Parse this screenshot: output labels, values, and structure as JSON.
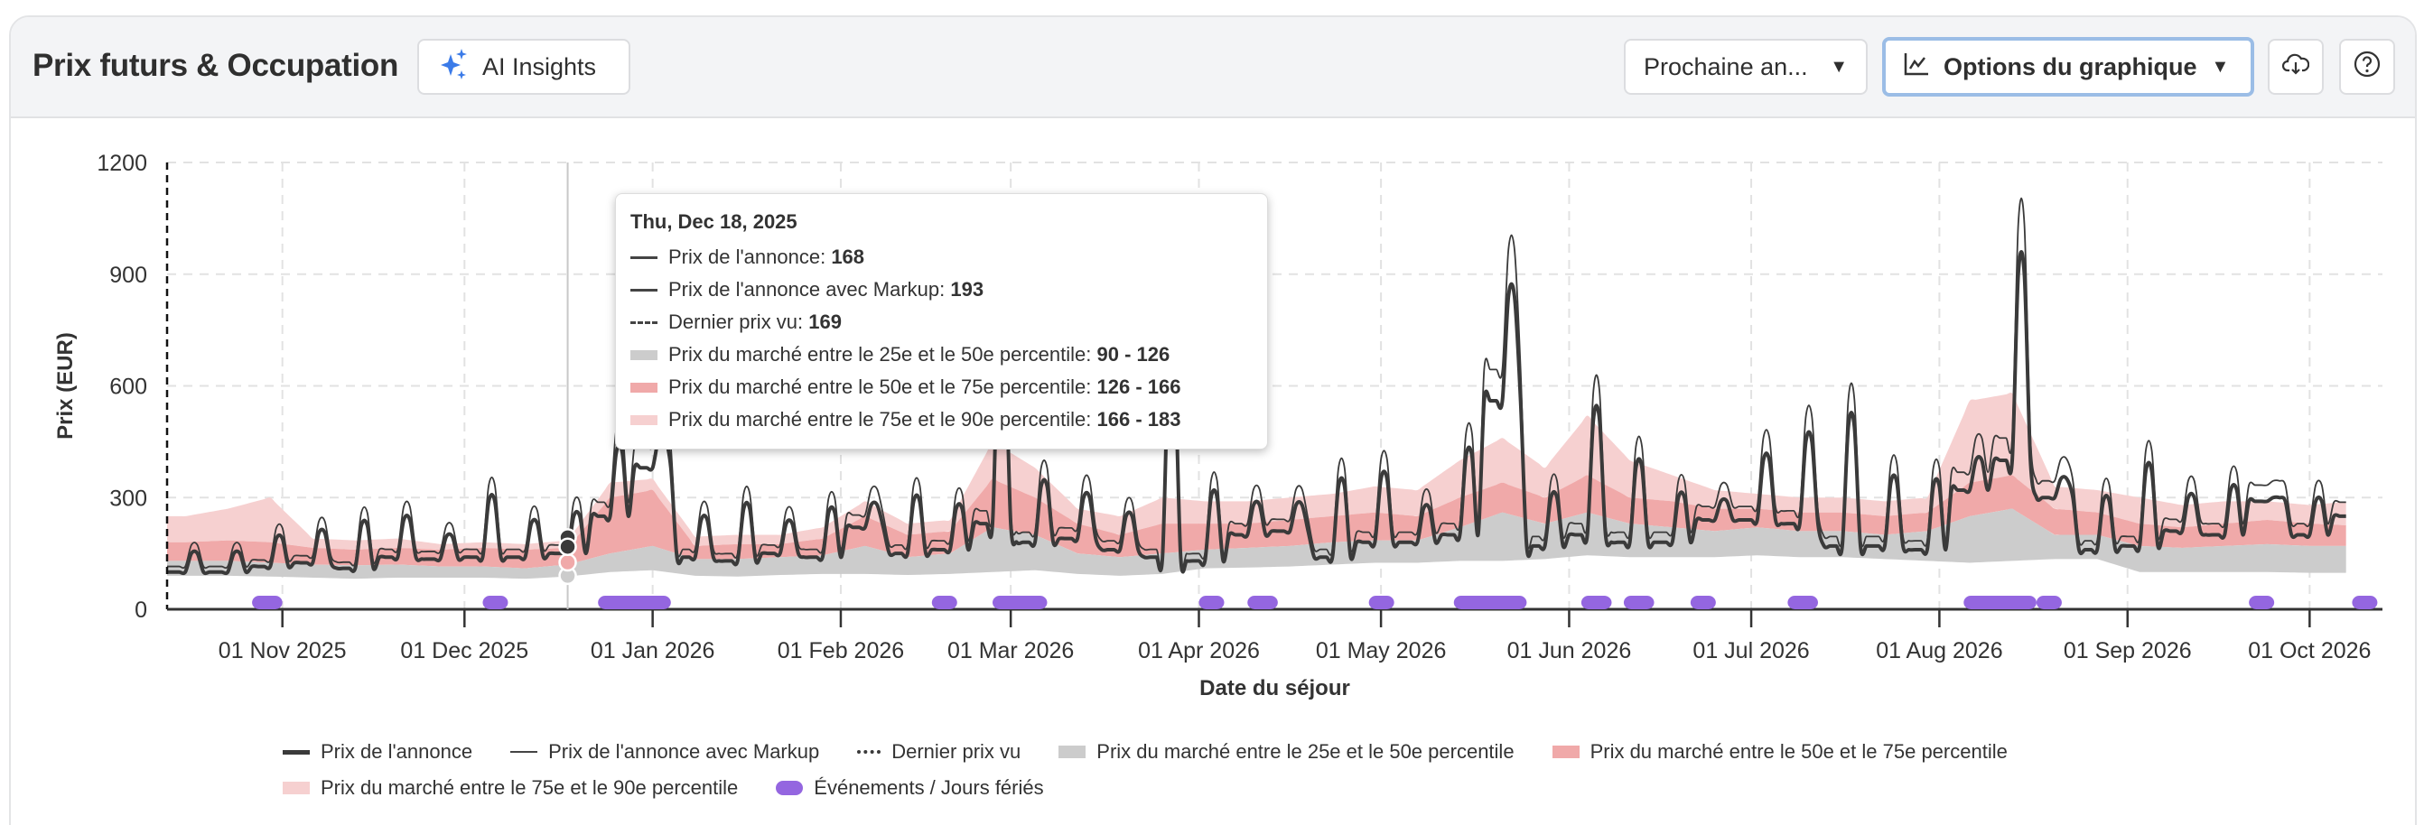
{
  "header": {
    "title": "Prix futurs & Occupation",
    "ai_insights_label": "AI Insights",
    "period_select_value": "Prochaine an...",
    "chart_options_label": "Options du graphique"
  },
  "icons": {
    "ai": "sparkles-icon",
    "options": "line-chart-icon",
    "download": "cloud-download-icon",
    "help": "help-circle-icon"
  },
  "colors": {
    "accent": "#3b7be8",
    "line": "#3a3a3a",
    "band_25_50": "#cccccc",
    "band_50_75": "#f0a9a9",
    "band_75_90": "#f6d0d0",
    "events": "#9466e0",
    "focus_ring": "#9bbde6"
  },
  "tooltip": {
    "date": "Thu, Dec 18, 2025",
    "rows": [
      {
        "label": "Prix de l'annonce: ",
        "value": "168"
      },
      {
        "label": "Prix de l'annonce avec Markup: ",
        "value": "193"
      },
      {
        "label": "Dernier prix vu: ",
        "value": "169"
      },
      {
        "label": "Prix du marché entre le 25e et le 50e percentile: ",
        "value": "90 - 126"
      },
      {
        "label": "Prix du marché entre le 50e et le 75e percentile: ",
        "value": "126 - 166"
      },
      {
        "label": "Prix du marché entre le 75e et le 90e percentile: ",
        "value": "166 - 183"
      }
    ]
  },
  "legend": [
    "Prix de l'annonce",
    "Prix de l'annonce avec Markup",
    "Dernier prix vu",
    "Prix du marché entre le 25e et le 50e percentile",
    "Prix du marché entre le 50e et le 75e percentile",
    "Prix du marché entre le 75e et le 90e percentile",
    "Événements / Jours fériés"
  ],
  "chart_data": {
    "type": "line",
    "xlabel": "Date du séjour",
    "ylabel": "Prix (EUR)",
    "ylim": [
      0,
      1200
    ],
    "yticks": [
      "0",
      "300",
      "600",
      "900",
      "1200"
    ],
    "ytick_values": [
      0,
      300,
      600,
      900,
      1200
    ],
    "xlim": [
      "2025-10-13",
      "2026-10-13"
    ],
    "xticks": [
      {
        "date": "2025-11-01",
        "label": "01 Nov 2025"
      },
      {
        "date": "2025-12-01",
        "label": "01 Dec 2025"
      },
      {
        "date": "2026-01-01",
        "label": "01 Jan 2026"
      },
      {
        "date": "2026-02-01",
        "label": "01 Feb 2026"
      },
      {
        "date": "2026-03-01",
        "label": "01 Mar 2026"
      },
      {
        "date": "2026-04-01",
        "label": "01 Apr 2026"
      },
      {
        "date": "2026-05-01",
        "label": "01 May 2026"
      },
      {
        "date": "2026-06-01",
        "label": "01 Jun 2026"
      },
      {
        "date": "2026-07-01",
        "label": "01 Jul 2026"
      },
      {
        "date": "2026-08-01",
        "label": "01 Aug 2026"
      },
      {
        "date": "2026-09-01",
        "label": "01 Sep 2026"
      },
      {
        "date": "2026-10-01",
        "label": "01 Oct 2026"
      }
    ],
    "grid": true,
    "legend_position": "bottom",
    "series_start": "2025-10-13",
    "series_end": "2026-10-07",
    "weekly_note_peak_days": "Fri-Sat",
    "markup_factor": 1.15,
    "weekly": {
      "week_start": [
        "2025-10-13"
      ],
      "price_base": [
        100,
        100,
        115,
        125,
        110,
        140,
        135,
        140,
        140,
        150,
        250,
        380,
        140,
        130,
        150,
        140,
        220,
        150,
        160,
        230,
        180,
        190,
        160,
        140,
        130,
        200,
        210,
        140,
        180,
        180,
        200,
        560,
        170,
        200,
        180,
        180,
        240,
        240,
        230,
        170,
        170,
        160,
        320,
        400,
        300,
        160,
        170,
        210,
        200,
        290,
        200,
        250
      ],
      "price_peak": [
        150,
        150,
        190,
        205,
        225,
        240,
        195,
        290,
        230,
        250,
        420,
        460,
        240,
        270,
        230,
        260,
        280,
        290,
        270,
        750,
        330,
        300,
        250,
        650,
        300,
        280,
        280,
        330,
        350,
        270,
        410,
        840,
        300,
        510,
        380,
        300,
        290,
        400,
        450,
        490,
        340,
        330,
        400,
        900,
        350,
        290,
        370,
        300,
        320,
        300,
        290,
        250
      ],
      "p25": [
        90,
        90,
        88,
        85,
        82,
        85,
        85,
        85,
        82,
        88,
        100,
        105,
        90,
        88,
        92,
        95,
        95,
        92,
        95,
        100,
        105,
        95,
        90,
        95,
        110,
        112,
        115,
        120,
        125,
        125,
        130,
        130,
        135,
        145,
        140,
        140,
        140,
        145,
        140,
        140,
        135,
        130,
        125,
        130,
        135,
        135,
        100,
        100,
        100,
        100,
        98,
        98
      ],
      "p50": [
        130,
        130,
        125,
        120,
        118,
        120,
        115,
        115,
        110,
        120,
        150,
        170,
        135,
        135,
        140,
        145,
        170,
        140,
        150,
        220,
        200,
        150,
        140,
        150,
        160,
        165,
        170,
        180,
        185,
        185,
        220,
        260,
        230,
        260,
        230,
        220,
        210,
        220,
        210,
        210,
        200,
        210,
        250,
        270,
        200,
        200,
        170,
        165,
        170,
        175,
        170,
        170
      ],
      "p75": [
        180,
        185,
        180,
        165,
        160,
        165,
        160,
        165,
        160,
        165,
        300,
        320,
        170,
        175,
        175,
        190,
        250,
        200,
        210,
        350,
        300,
        230,
        200,
        230,
        230,
        230,
        240,
        250,
        260,
        250,
        300,
        340,
        300,
        360,
        300,
        290,
        270,
        270,
        260,
        260,
        250,
        260,
        340,
        360,
        270,
        260,
        230,
        220,
        230,
        240,
        230,
        225
      ],
      "p90": [
        250,
        270,
        300,
        190,
        185,
        190,
        175,
        180,
        175,
        185,
        340,
        350,
        195,
        200,
        200,
        220,
        290,
        230,
        240,
        450,
        380,
        270,
        250,
        300,
        290,
        290,
        300,
        310,
        330,
        320,
        400,
        460,
        380,
        520,
        400,
        360,
        320,
        310,
        300,
        300,
        290,
        300,
        560,
        580,
        330,
        320,
        300,
        280,
        290,
        290,
        280,
        290
      ]
    },
    "hover": {
      "date": "2025-12-18",
      "price": 168,
      "markup": 193,
      "last_seen": 169,
      "p25": 90,
      "p50": 126,
      "p75": 166,
      "p90": 183
    },
    "events": [
      [
        "2025-10-27",
        "2025-11-01"
      ],
      [
        "2025-12-04",
        "2025-12-07"
      ],
      [
        "2025-12-23",
        "2026-01-04"
      ],
      [
        "2026-02-16",
        "2026-02-20"
      ],
      [
        "2026-02-26",
        "2026-03-07"
      ],
      [
        "2026-04-01",
        "2026-04-05"
      ],
      [
        "2026-04-09",
        "2026-04-14"
      ],
      [
        "2026-04-29",
        "2026-05-03"
      ],
      [
        "2026-05-13",
        "2026-05-25"
      ],
      [
        "2026-06-03",
        "2026-06-08"
      ],
      [
        "2026-06-10",
        "2026-06-15"
      ],
      [
        "2026-06-21",
        "2026-06-25"
      ],
      [
        "2026-07-07",
        "2026-07-12"
      ],
      [
        "2026-08-05",
        "2026-08-17"
      ],
      [
        "2026-08-17",
        "2026-08-21"
      ],
      [
        "2026-09-21",
        "2026-09-25"
      ],
      [
        "2026-10-08",
        "2026-10-12"
      ]
    ]
  }
}
